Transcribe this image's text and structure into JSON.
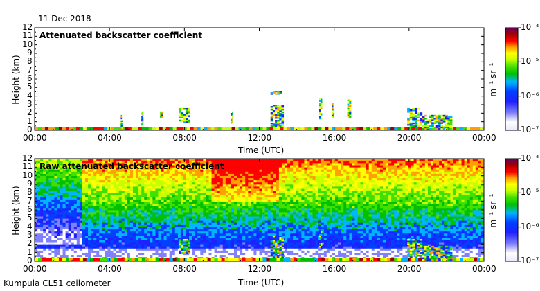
{
  "header": {
    "date": "11 Dec 2018"
  },
  "footer": {
    "site": "Kumpula CL51 ceilometer"
  },
  "colors": {
    "background": "#ffffff",
    "colormap": [
      "#e8e8ff",
      "#ffffff",
      "#8080ff",
      "#2020ff",
      "#0040ff",
      "#00b4ff",
      "#00c000",
      "#40e000",
      "#c8ff00",
      "#ffff00",
      "#ffa000",
      "#ff0000",
      "#a00000",
      "#600060"
    ]
  },
  "chart_data": [
    {
      "type": "heatmap",
      "title": "Attenuated backscatter coefficient",
      "xlabel": "Time (UTC)",
      "ylabel": "Height (km)",
      "xlim": [
        0,
        24
      ],
      "ylim": [
        0,
        12
      ],
      "xticks": [
        "00:00",
        "04:00",
        "08:00",
        "12:00",
        "16:00",
        "20:00",
        "00:00"
      ],
      "yticks": [
        "0",
        "1",
        "2",
        "3",
        "4",
        "5",
        "6",
        "7",
        "8",
        "9",
        "10",
        "11",
        "12"
      ],
      "colorbar": {
        "label": "m⁻¹ sr⁻¹",
        "ticks": [
          "10⁻⁴",
          "10⁻⁵",
          "10⁻⁶",
          "10⁻⁷"
        ],
        "range_log10": [
          -7,
          -4
        ]
      },
      "features": [
        {
          "t_start": 4.6,
          "t_end": 4.7,
          "z_base": 0.2,
          "z_top": 1.8
        },
        {
          "t_start": 5.7,
          "t_end": 5.8,
          "z_base": 0.5,
          "z_top": 2.2
        },
        {
          "t_start": 6.7,
          "t_end": 6.85,
          "z_base": 1.5,
          "z_top": 2.2
        },
        {
          "t_start": 7.7,
          "t_end": 8.3,
          "z_base": 0.9,
          "z_top": 2.6
        },
        {
          "t_start": 10.5,
          "t_end": 10.6,
          "z_base": 0.8,
          "z_top": 2.2
        },
        {
          "t_start": 12.6,
          "t_end": 13.3,
          "z_base": 0.4,
          "z_top": 3.0
        },
        {
          "t_start": 12.6,
          "t_end": 13.2,
          "z_base": 4.2,
          "z_top": 4.6
        },
        {
          "t_start": 15.2,
          "t_end": 15.35,
          "z_base": 1.3,
          "z_top": 3.7
        },
        {
          "t_start": 15.9,
          "t_end": 16.0,
          "z_base": 1.5,
          "z_top": 3.2
        },
        {
          "t_start": 16.7,
          "t_end": 16.9,
          "z_base": 1.5,
          "z_top": 3.6
        },
        {
          "t_start": 19.9,
          "t_end": 20.7,
          "z_base": 0.4,
          "z_top": 2.6
        },
        {
          "t_start": 20.7,
          "t_end": 22.3,
          "z_base": 0.1,
          "z_top": 1.8
        }
      ]
    },
    {
      "type": "heatmap",
      "title": "Raw attenuated backscatter coefficient",
      "xlabel": "Time (UTC)",
      "ylabel": "Height (km)",
      "xlim": [
        0,
        24
      ],
      "ylim": [
        0,
        12
      ],
      "xticks": [
        "00:00",
        "04:00",
        "08:00",
        "12:00",
        "16:00",
        "20:00",
        "00:00"
      ],
      "yticks": [
        "0",
        "1",
        "2",
        "3",
        "4",
        "5",
        "6",
        "7",
        "8",
        "9",
        "10",
        "11",
        "12"
      ],
      "colorbar": {
        "label": "m⁻¹ sr⁻¹",
        "ticks": [
          "10⁻⁴",
          "10⁻⁵",
          "10⁻⁶",
          "10⁻⁷"
        ],
        "range_log10": [
          -7,
          -4
        ]
      },
      "features": [
        {
          "t_start": 7.7,
          "t_end": 8.3,
          "z_base": 0.9,
          "z_top": 2.6
        },
        {
          "t_start": 12.6,
          "t_end": 13.3,
          "z_base": 0.4,
          "z_top": 3.0
        },
        {
          "t_start": 15.2,
          "t_end": 15.35,
          "z_base": 1.3,
          "z_top": 3.7
        },
        {
          "t_start": 19.9,
          "t_end": 20.7,
          "z_base": 0.4,
          "z_top": 2.6
        },
        {
          "t_start": 20.7,
          "t_end": 22.3,
          "z_base": 0.1,
          "z_top": 1.8
        }
      ]
    }
  ]
}
